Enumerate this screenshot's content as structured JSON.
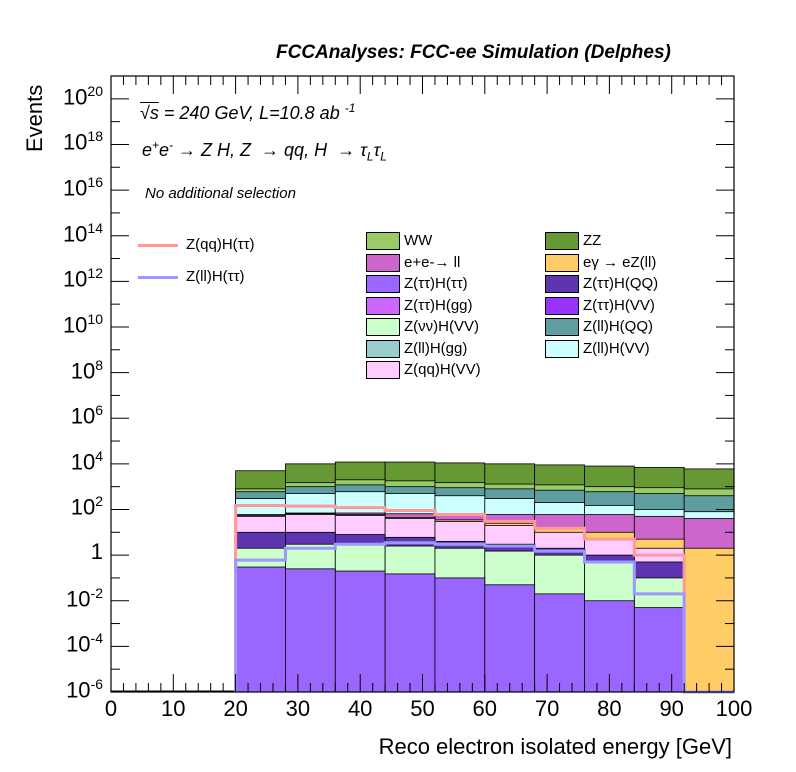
{
  "header": {
    "experiment": "FCCAnalyses: FCC-ee Simulation (Delphes)"
  },
  "annotations": {
    "energy_lumi": "√s = 240 GeV, L=10.8 ab -1",
    "process": "e+e- → Z H, Z → qq, H → τLτL",
    "selection": "No additional selection"
  },
  "chart_data": {
    "type": "bar",
    "stacked": true,
    "xlabel": "Reco electron isolated energy [GeV]",
    "ylabel": "Events",
    "xlim": [
      0,
      100
    ],
    "ylim": [
      1e-06,
      1e+21
    ],
    "yscale": "log",
    "x_ticks": [
      "0",
      "10",
      "20",
      "30",
      "40",
      "50",
      "60",
      "70",
      "80",
      "90",
      "100"
    ],
    "y_ticks": [
      {
        "label": "10",
        "exp": "-6",
        "value": 1e-06
      },
      {
        "label": "10",
        "exp": "-4",
        "value": 0.0001
      },
      {
        "label": "10",
        "exp": "-2",
        "value": 0.01
      },
      {
        "label": "1",
        "exp": "",
        "value": 1
      },
      {
        "label": "10",
        "exp": "2",
        "value": 100.0
      },
      {
        "label": "10",
        "exp": "4",
        "value": 10000.0
      },
      {
        "label": "10",
        "exp": "6",
        "value": 1000000.0
      },
      {
        "label": "10",
        "exp": "8",
        "value": 100000000.0
      },
      {
        "label": "10",
        "exp": "10",
        "value": 10000000000.0
      },
      {
        "label": "10",
        "exp": "12",
        "value": 1000000000000.0
      },
      {
        "label": "10",
        "exp": "14",
        "value": 100000000000000.0
      },
      {
        "label": "10",
        "exp": "16",
        "value": 1e+16
      },
      {
        "label": "10",
        "exp": "18",
        "value": 1e+18
      },
      {
        "label": "10",
        "exp": "20",
        "value": 1e+20
      }
    ],
    "bin_edges": [
      20,
      28,
      36,
      44,
      52,
      60,
      68,
      76,
      84,
      92,
      100
    ],
    "stack_boundaries": [
      {
        "name": "Z(ττ)H(ττ)",
        "color": "#9966ff",
        "values": [
          0.3,
          0.25,
          0.2,
          0.15,
          0.1,
          0.05,
          0.02,
          0.01,
          0.005,
          1e-06
        ]
      },
      {
        "name": "Z(νν)H(VV)",
        "color": "#ccffcc",
        "values": [
          2,
          3,
          3,
          2.5,
          2,
          1.5,
          1,
          0.5,
          0.1,
          1e-06
        ]
      },
      {
        "name": "Z(ττ)H(QQ)",
        "color": "#5e35b1",
        "values": [
          10,
          10,
          8,
          6,
          4,
          3,
          2,
          1,
          0.5,
          1e-06
        ]
      },
      {
        "name": "Z(qq)H(VV)",
        "color": "#ffccff",
        "values": [
          50,
          60,
          55,
          40,
          30,
          20,
          10,
          5,
          2,
          1e-06
        ]
      },
      {
        "name": "eγ → eZ(ll)",
        "color": "#ffcc66",
        "values": [
          55,
          65,
          60,
          45,
          35,
          25,
          15,
          10,
          5,
          2
        ]
      },
      {
        "name": "e+e-→ ll",
        "color": "#cc66cc",
        "values": [
          60,
          70,
          70,
          65,
          60,
          60,
          60,
          60,
          50,
          40
        ]
      },
      {
        "name": "Z(ll)H(VV)",
        "color": "#ccffff",
        "values": [
          300,
          500,
          600,
          500,
          400,
          300,
          200,
          150,
          100,
          80
        ]
      },
      {
        "name": "Z(ll)H(QQ)",
        "color": "#5f9ea0",
        "values": [
          600,
          1000,
          1200,
          1000,
          900,
          800,
          700,
          600,
          500,
          400
        ]
      },
      {
        "name": "WW",
        "color": "#99cc66",
        "values": [
          800,
          1500,
          2000,
          1800,
          1500,
          1300,
          1200,
          1000,
          900,
          800
        ]
      },
      {
        "name": "ZZ",
        "color": "#669933",
        "values": [
          5000,
          10000,
          12000,
          12000,
          11000,
          10000,
          9000,
          8000,
          7000,
          6000
        ]
      }
    ],
    "overlays": [
      {
        "name": "Z(qq)H(ττ)",
        "color": "#ff9999",
        "values": [
          150,
          140,
          120,
          90,
          60,
          30,
          15,
          5,
          1,
          1e-06
        ]
      },
      {
        "name": "Z(ll)H(ττ)",
        "color": "#9999ff",
        "values": [
          0.6,
          2,
          3,
          3.5,
          3,
          2.5,
          1.5,
          0.5,
          0.02,
          1e-06
        ]
      }
    ],
    "legend_lines": [
      {
        "label": "Z(qq)H(ττ)",
        "color": "#ff9999"
      },
      {
        "label": "Z(ll)H(ττ)",
        "color": "#9999ff"
      }
    ],
    "legend_fills": [
      {
        "label": "WW",
        "color": "#99cc66"
      },
      {
        "label": "ZZ",
        "color": "#669933"
      },
      {
        "label": "e+e-→ ll",
        "color": "#cc66cc"
      },
      {
        "label": "eγ → eZ(ll)",
        "color": "#ffcc66"
      },
      {
        "label": "Z(ττ)H(ττ)",
        "color": "#9966ff"
      },
      {
        "label": "Z(ττ)H(QQ)",
        "color": "#5e35b1"
      },
      {
        "label": "Z(ττ)H(gg)",
        "color": "#cc66ff"
      },
      {
        "label": "Z(ττ)H(VV)",
        "color": "#9933ff"
      },
      {
        "label": "Z(νν)H(VV)",
        "color": "#ccffcc"
      },
      {
        "label": "Z(ll)H(QQ)",
        "color": "#5f9ea0"
      },
      {
        "label": "Z(ll)H(gg)",
        "color": "#99cccc"
      },
      {
        "label": "Z(ll)H(VV)",
        "color": "#ccffff"
      },
      {
        "label": "Z(qq)H(VV)",
        "color": "#ffccff"
      }
    ]
  }
}
